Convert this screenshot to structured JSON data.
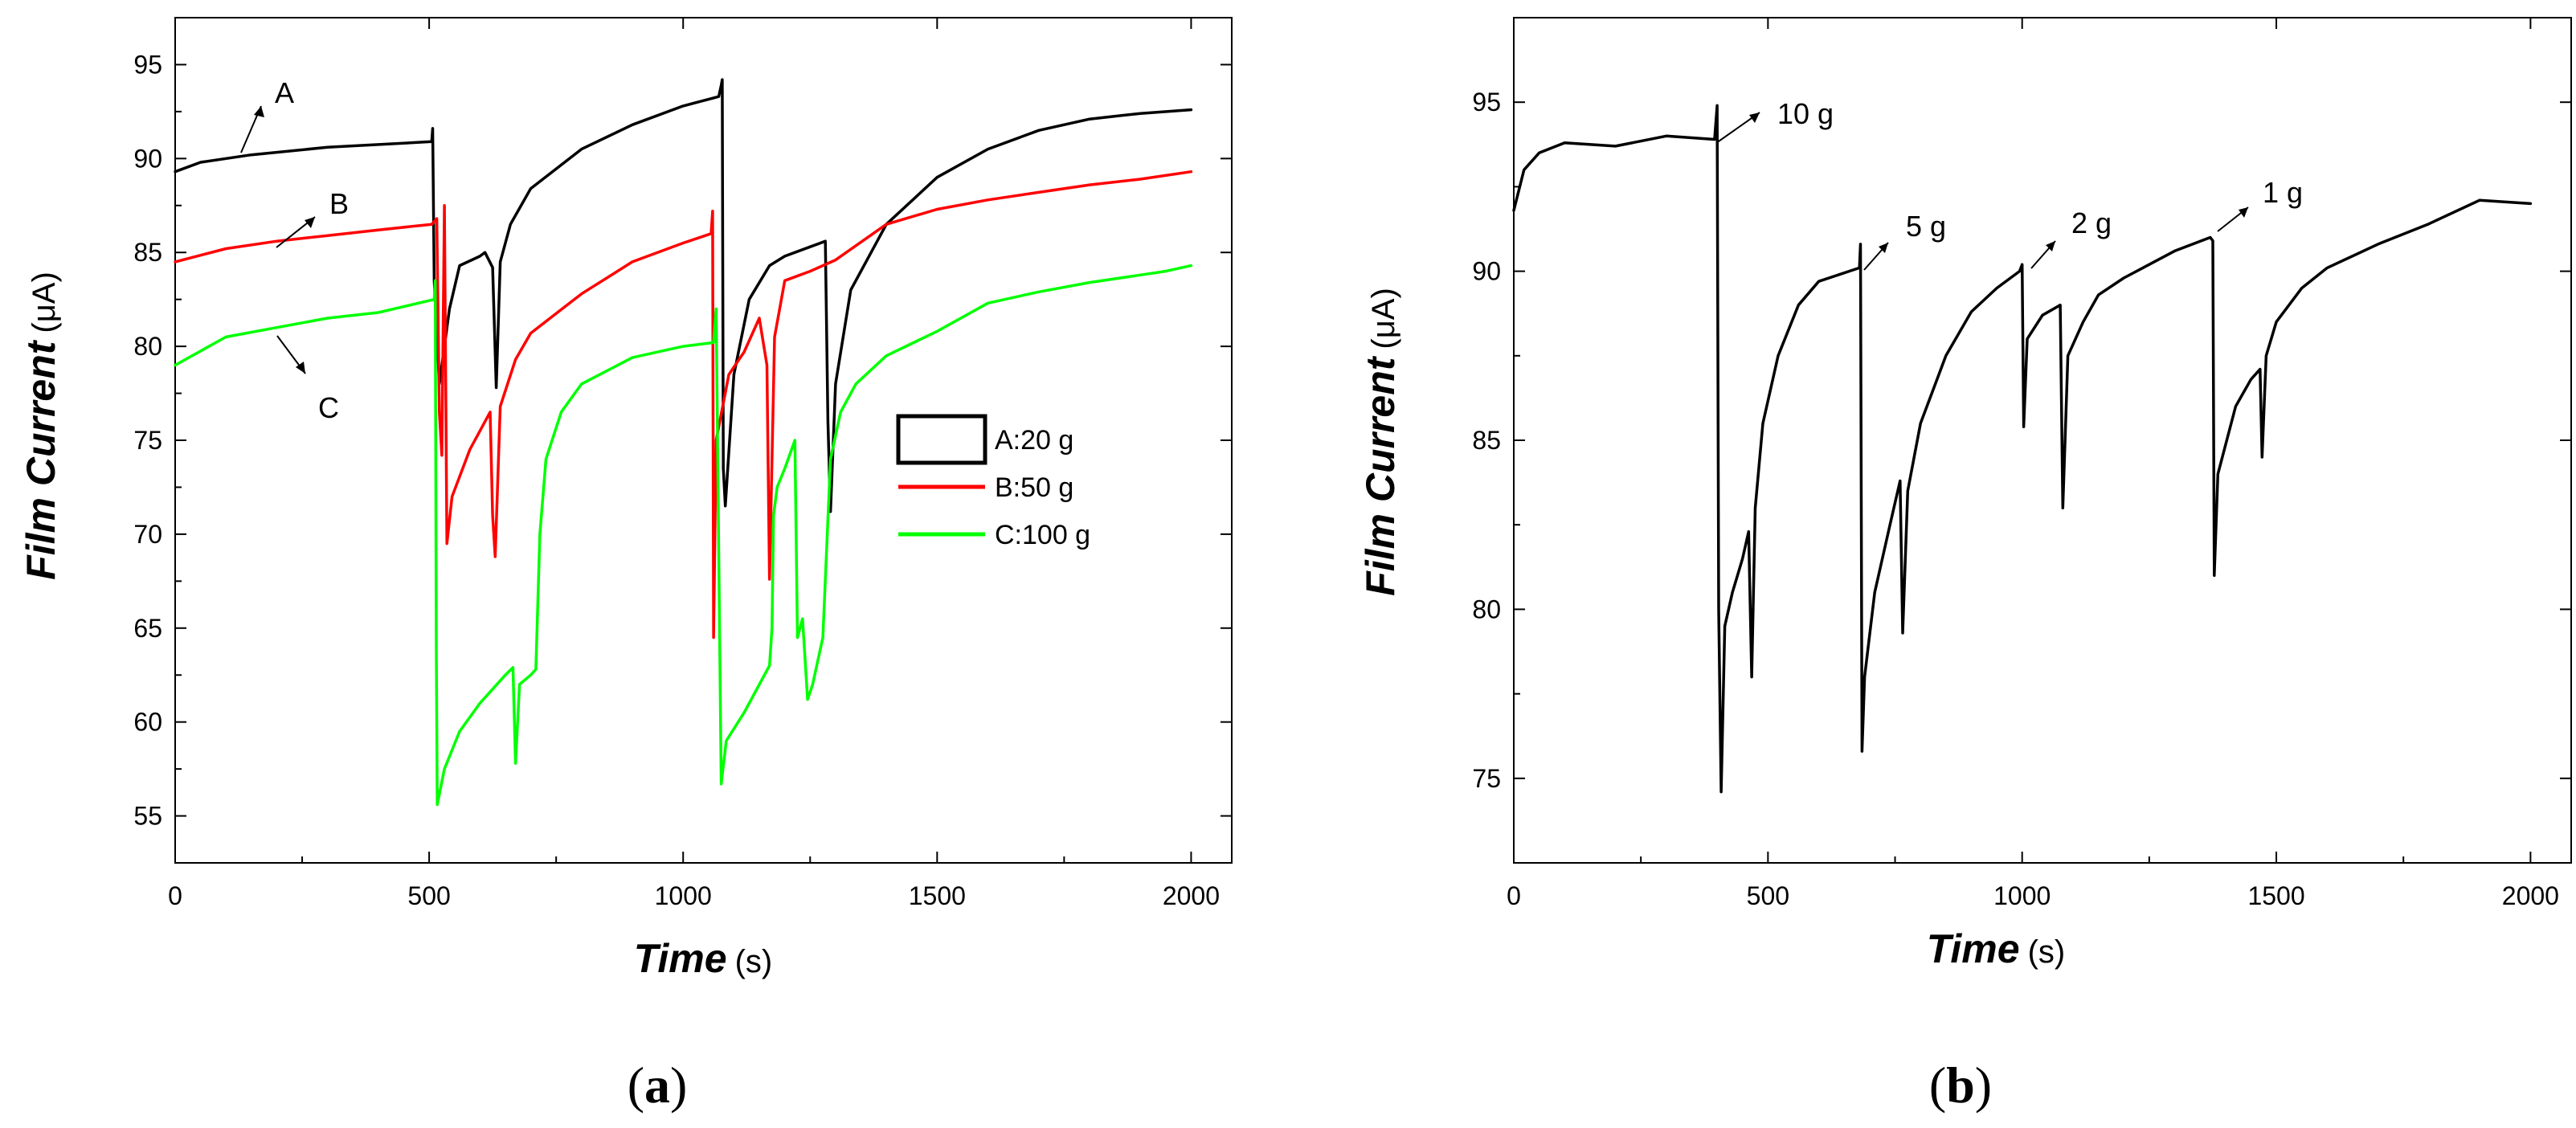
{
  "chart_data": [
    {
      "type": "line",
      "panel_label": {
        "open": "(",
        "letter": "a",
        "close": ")"
      },
      "xlabel": "Time",
      "xunit": "(s)",
      "ylabel": "Film Current",
      "yunit": "(μA)",
      "xlim": [
        0,
        2080
      ],
      "ylim": [
        52.5,
        97.5
      ],
      "xticks": [
        0,
        500,
        1000,
        1500,
        2000
      ],
      "yticks": [
        55,
        60,
        65,
        70,
        75,
        80,
        85,
        90,
        95
      ],
      "legend_position": "center-right",
      "series": [
        {
          "name": "A:20 g",
          "color": "#000000",
          "points": [
            [
              0,
              89.3
            ],
            [
              50,
              89.8
            ],
            [
              150,
              90.2
            ],
            [
              300,
              90.6
            ],
            [
              505,
              90.9
            ],
            [
              507,
              91.6
            ],
            [
              510,
              83.5
            ],
            [
              520,
              78
            ],
            [
              540,
              82
            ],
            [
              560,
              84.3
            ],
            [
              600,
              84.8
            ],
            [
              610,
              85.0
            ],
            [
              625,
              84.2
            ],
            [
              632,
              77.8
            ],
            [
              640,
              84.5
            ],
            [
              660,
              86.5
            ],
            [
              700,
              88.4
            ],
            [
              800,
              90.5
            ],
            [
              900,
              91.8
            ],
            [
              1000,
              92.8
            ],
            [
              1070,
              93.3
            ],
            [
              1075,
              93.9
            ],
            [
              1077,
              94.2
            ],
            [
              1079,
              73.5
            ],
            [
              1083,
              71.5
            ],
            [
              1100,
              78.5
            ],
            [
              1130,
              82.5
            ],
            [
              1170,
              84.3
            ],
            [
              1200,
              84.8
            ],
            [
              1250,
              85.3
            ],
            [
              1280,
              85.6
            ],
            [
              1285,
              76
            ],
            [
              1290,
              71.2
            ],
            [
              1300,
              78
            ],
            [
              1330,
              83
            ],
            [
              1400,
              86.5
            ],
            [
              1500,
              89
            ],
            [
              1600,
              90.5
            ],
            [
              1700,
              91.5
            ],
            [
              1800,
              92.1
            ],
            [
              1900,
              92.4
            ],
            [
              2000,
              92.6
            ]
          ]
        },
        {
          "name": "B:50 g",
          "color": "#ff0000",
          "points": [
            [
              0,
              84.5
            ],
            [
              100,
              85.2
            ],
            [
              200,
              85.6
            ],
            [
              300,
              85.9
            ],
            [
              400,
              86.2
            ],
            [
              505,
              86.5
            ],
            [
              515,
              86.8
            ],
            [
              520,
              76.5
            ],
            [
              525,
              74.2
            ],
            [
              530,
              87.5
            ],
            [
              535,
              69.5
            ],
            [
              545,
              72
            ],
            [
              580,
              74.5
            ],
            [
              620,
              76.5
            ],
            [
              625,
              71
            ],
            [
              630,
              68.8
            ],
            [
              640,
              76.8
            ],
            [
              670,
              79.3
            ],
            [
              700,
              80.7
            ],
            [
              800,
              82.8
            ],
            [
              900,
              84.5
            ],
            [
              1000,
              85.5
            ],
            [
              1055,
              86.0
            ],
            [
              1058,
              87.2
            ],
            [
              1060,
              64.5
            ],
            [
              1065,
              75
            ],
            [
              1090,
              78.5
            ],
            [
              1120,
              79.7
            ],
            [
              1150,
              81.5
            ],
            [
              1165,
              79
            ],
            [
              1170,
              67.6
            ],
            [
              1180,
              80.5
            ],
            [
              1200,
              83.5
            ],
            [
              1250,
              84
            ],
            [
              1300,
              84.6
            ],
            [
              1400,
              86.5
            ],
            [
              1500,
              87.3
            ],
            [
              1600,
              87.8
            ],
            [
              1700,
              88.2
            ],
            [
              1800,
              88.6
            ],
            [
              1900,
              88.9
            ],
            [
              2000,
              89.3
            ]
          ]
        },
        {
          "name": "C:100 g",
          "color": "#00ff00",
          "points": [
            [
              0,
              79
            ],
            [
              100,
              80.5
            ],
            [
              200,
              81
            ],
            [
              300,
              81.5
            ],
            [
              400,
              81.8
            ],
            [
              510,
              82.5
            ],
            [
              512,
              83.5
            ],
            [
              514,
              64
            ],
            [
              516,
              55.6
            ],
            [
              530,
              57.5
            ],
            [
              560,
              59.5
            ],
            [
              600,
              61
            ],
            [
              650,
              62.5
            ],
            [
              665,
              62.9
            ],
            [
              670,
              57.8
            ],
            [
              678,
              62
            ],
            [
              700,
              62.5
            ],
            [
              710,
              62.8
            ],
            [
              718,
              70
            ],
            [
              730,
              74
            ],
            [
              760,
              76.5
            ],
            [
              800,
              78
            ],
            [
              900,
              79.4
            ],
            [
              1000,
              80
            ],
            [
              1060,
              80.2
            ],
            [
              1065,
              82
            ],
            [
              1075,
              56.7
            ],
            [
              1085,
              59
            ],
            [
              1120,
              60.5
            ],
            [
              1170,
              63
            ],
            [
              1175,
              65
            ],
            [
              1178,
              71
            ],
            [
              1185,
              72.5
            ],
            [
              1200,
              73.5
            ],
            [
              1220,
              75
            ],
            [
              1225,
              64.5
            ],
            [
              1235,
              65.5
            ],
            [
              1245,
              61.2
            ],
            [
              1255,
              62
            ],
            [
              1275,
              64.5
            ],
            [
              1290,
              74
            ],
            [
              1310,
              76.5
            ],
            [
              1340,
              78
            ],
            [
              1400,
              79.5
            ],
            [
              1500,
              80.8
            ],
            [
              1600,
              82.3
            ],
            [
              1700,
              82.9
            ],
            [
              1800,
              83.4
            ],
            [
              1900,
              83.8
            ],
            [
              1950,
              84.0
            ],
            [
              2000,
              84.3
            ]
          ]
        }
      ],
      "annotations": [
        {
          "text": "A",
          "series": "A:20 g"
        },
        {
          "text": "B",
          "series": "B:50 g"
        },
        {
          "text": "C",
          "series": "C:100 g"
        }
      ]
    },
    {
      "type": "line",
      "panel_label": {
        "open": "(",
        "letter": "b",
        "close": ")"
      },
      "xlabel": "Time",
      "xunit": "(s)",
      "ylabel": "Film Current",
      "yunit": "(μA)",
      "xlim": [
        0,
        2080
      ],
      "ylim": [
        72.5,
        97.5
      ],
      "xticks": [
        0,
        500,
        1000,
        1500,
        2000
      ],
      "yticks": [
        75,
        80,
        85,
        90,
        95
      ],
      "series": [
        {
          "name": "film current",
          "color": "#000000",
          "points": [
            [
              0,
              91.8
            ],
            [
              20,
              93
            ],
            [
              50,
              93.5
            ],
            [
              100,
              93.8
            ],
            [
              200,
              93.7
            ],
            [
              300,
              94.0
            ],
            [
              395,
              93.9
            ],
            [
              400,
              94.9
            ],
            [
              403,
              80
            ],
            [
              408,
              74.6
            ],
            [
              415,
              79.5
            ],
            [
              430,
              80.5
            ],
            [
              450,
              81.5
            ],
            [
              462,
              82.3
            ],
            [
              468,
              78
            ],
            [
              475,
              83
            ],
            [
              490,
              85.5
            ],
            [
              520,
              87.5
            ],
            [
              560,
              89
            ],
            [
              600,
              89.7
            ],
            [
              680,
              90.1
            ],
            [
              682,
              90.8
            ],
            [
              685,
              75.8
            ],
            [
              690,
              78
            ],
            [
              710,
              80.5
            ],
            [
              740,
              82.5
            ],
            [
              760,
              83.8
            ],
            [
              765,
              79.3
            ],
            [
              775,
              83.5
            ],
            [
              800,
              85.5
            ],
            [
              850,
              87.5
            ],
            [
              900,
              88.8
            ],
            [
              950,
              89.5
            ],
            [
              995,
              90
            ],
            [
              1000,
              90.2
            ],
            [
              1003,
              85.4
            ],
            [
              1010,
              88
            ],
            [
              1040,
              88.7
            ],
            [
              1075,
              89
            ],
            [
              1080,
              83
            ],
            [
              1090,
              87.5
            ],
            [
              1120,
              88.5
            ],
            [
              1150,
              89.3
            ],
            [
              1200,
              89.8
            ],
            [
              1250,
              90.2
            ],
            [
              1300,
              90.6
            ],
            [
              1370,
              91
            ],
            [
              1375,
              90.9
            ],
            [
              1378,
              81
            ],
            [
              1385,
              84
            ],
            [
              1420,
              86
            ],
            [
              1450,
              86.8
            ],
            [
              1468,
              87.1
            ],
            [
              1472,
              84.5
            ],
            [
              1480,
              87.5
            ],
            [
              1500,
              88.5
            ],
            [
              1550,
              89.5
            ],
            [
              1600,
              90.1
            ],
            [
              1700,
              90.8
            ],
            [
              1800,
              91.4
            ],
            [
              1900,
              92.1
            ],
            [
              2000,
              92.0
            ]
          ]
        }
      ],
      "annotations": [
        {
          "text": "10 g",
          "x": 400
        },
        {
          "text": "5 g",
          "x": 682
        },
        {
          "text": "2 g",
          "x": 1000
        },
        {
          "text": "1 g",
          "x": 1375
        }
      ]
    }
  ]
}
